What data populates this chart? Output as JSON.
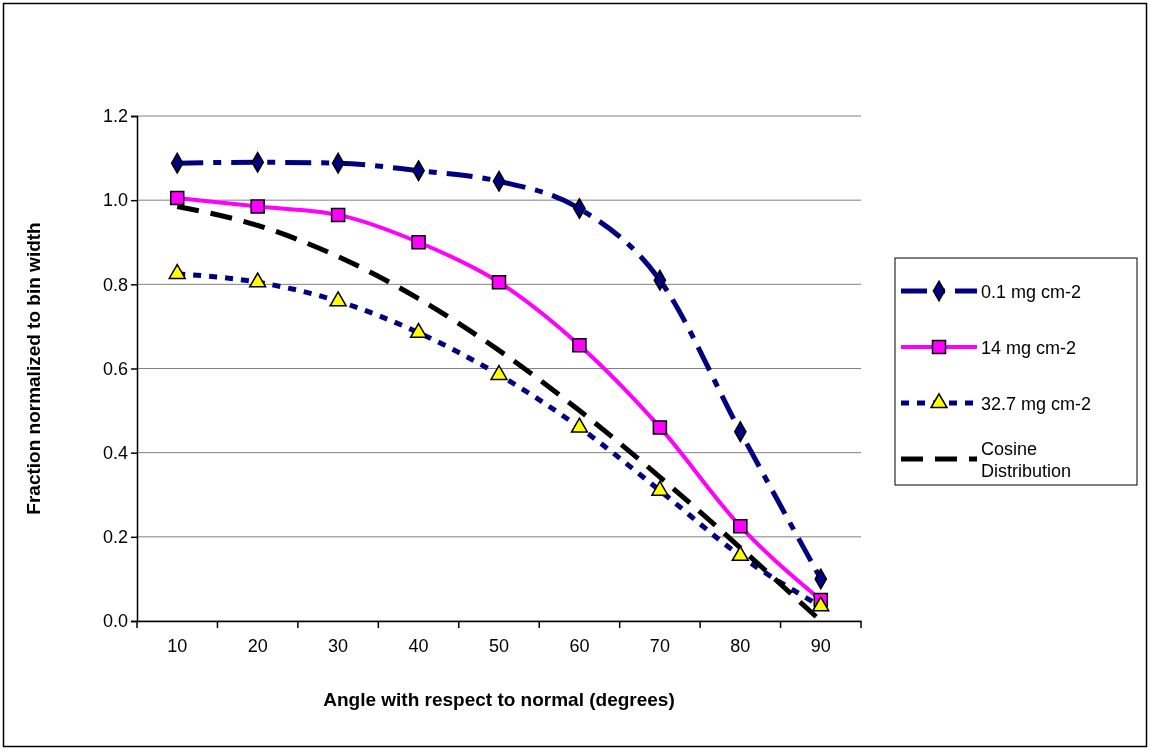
{
  "chart_data": {
    "type": "line",
    "xlabel": "Angle with respect to normal (degrees)",
    "ylabel": "Fraction normalized to bin width",
    "categories": [
      "10",
      "20",
      "30",
      "40",
      "50",
      "60",
      "70",
      "80",
      "90"
    ],
    "series": [
      {
        "name": "0.1 mg cm-2",
        "color": "#000080",
        "marker": "diamond",
        "line_style": "dashdot",
        "values": [
          1.088,
          1.09,
          1.088,
          1.07,
          1.045,
          0.98,
          0.81,
          0.45,
          0.1
        ]
      },
      {
        "name": "14 mg cm-2",
        "color": "#ff00ff",
        "marker": "square",
        "line_style": "solid",
        "values": [
          1.005,
          0.985,
          0.965,
          0.9,
          0.805,
          0.655,
          0.46,
          0.225,
          0.05
        ]
      },
      {
        "name": "32.7 mg cm-2",
        "color": "#000080",
        "marker": "triangle",
        "colors": [
          "#ffff00",
          "#ffff00",
          "#ffff00",
          "#ffff00",
          "#ffff00",
          "#ffff00",
          "#ffff00",
          "#ffff00",
          "#ffff00"
        ],
        "line_style": "dotted",
        "values": [
          0.825,
          0.805,
          0.76,
          0.685,
          0.585,
          0.46,
          0.31,
          0.155,
          0.035
        ]
      },
      {
        "name": "Cosine Distribution",
        "color": "#000000",
        "marker": "none",
        "line_style": "dashed",
        "values": [
          0.985,
          0.94,
          0.866,
          0.766,
          0.643,
          0.5,
          0.342,
          0.174,
          0.0
        ]
      }
    ],
    "ylim": [
      0,
      1.2
    ],
    "yticks": [
      {
        "value": 0,
        "label": "0.0"
      },
      0.2,
      0.4,
      0.6,
      0.8,
      {
        "value": 1,
        "label": "1.0"
      },
      1.2
    ],
    "grid": "y",
    "legend": "right"
  }
}
